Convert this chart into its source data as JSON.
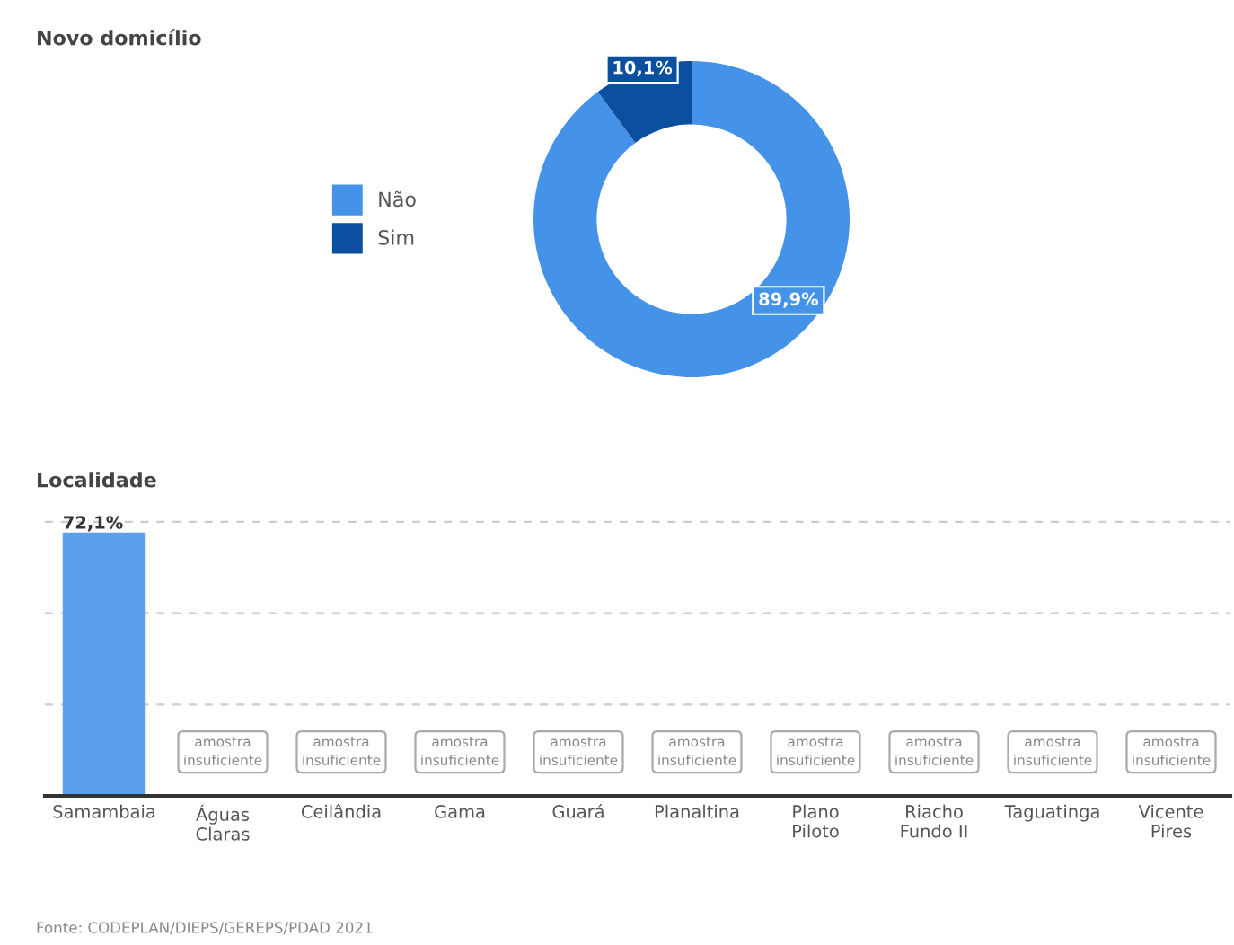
{
  "chart_data": [
    {
      "type": "donut",
      "title": "Novo domicílio",
      "categories": [
        "Não",
        "Sim"
      ],
      "values": [
        89.9,
        10.1
      ],
      "colors": [
        "#4593e9",
        "#0b4fa0"
      ],
      "value_labels": [
        "89,9%",
        "10,1%"
      ],
      "legend": "left"
    },
    {
      "type": "bar",
      "title": "Localidade",
      "categories": [
        "Samambaia",
        "Águas\nClaras",
        "Ceilândia",
        "Gama",
        "Guará",
        "Planaltina",
        "Plano\nPiloto",
        "Riacho\nFundo II",
        "Taguatinga",
        "Vicente\nPires"
      ],
      "values": [
        72.1,
        null,
        null,
        null,
        null,
        null,
        null,
        null,
        null,
        null
      ],
      "color": "#5aa0ea",
      "value_labels": [
        "72,1%",
        null,
        null,
        null,
        null,
        null,
        null,
        null,
        null,
        null
      ],
      "ref_lines": [
        {
          "axis": "y",
          "value": 25,
          "label": null,
          "color": "#cccccc",
          "line_style": "dashed"
        },
        {
          "axis": "y",
          "value": 50,
          "label": null,
          "color": "#cccccc",
          "line_style": "dashed"
        },
        {
          "axis": "y",
          "value": 75,
          "label": null,
          "color": "#cccccc",
          "line_style": "dashed"
        }
      ],
      "tick_labels": "x",
      "annotations": [
        "amostra\ninsuficiente",
        "amostra\ninsuficiente",
        "amostra\ninsuficiente",
        "amostra\ninsuficiente",
        "amostra\ninsuficiente",
        "amostra\ninsuficiente",
        "amostra\ninsuficiente",
        "amostra\ninsuficiente",
        "amostra\ninsuficiente",
        "Fonte: CODEPLAN/DIEPS/GEREPS/PDAD 2021"
      ]
    }
  ]
}
